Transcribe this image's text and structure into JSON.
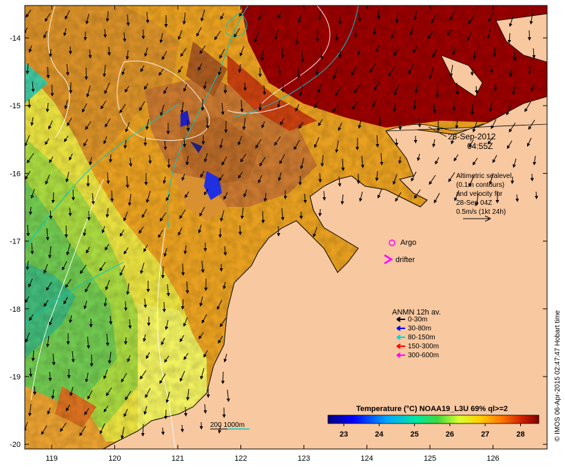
{
  "map": {
    "date_line1": "28-Sep-2012",
    "date_line2": "04:55Z",
    "altimetry": [
      "Altimetric sealevel",
      "(0.1m contours)",
      "and velocity for",
      "28-Sep 04Z",
      "0.5m/s (1kt 24h)"
    ],
    "lon_ticks": [
      "119",
      "120",
      "121",
      "122",
      "123",
      "124",
      "125",
      "126"
    ],
    "lat_ticks": [
      "-14",
      "-15",
      "-16",
      "-17",
      "-18",
      "-19",
      "-20"
    ],
    "legend": {
      "argo": "Argo",
      "drifter": "drifter",
      "anmn_title": "ANMN 12h av.",
      "anmn_items": [
        {
          "label": "0-30m",
          "color": "#000000"
        },
        {
          "label": "30-80m",
          "color": "#0000ff"
        },
        {
          "label": "80-150m",
          "color": "#00d8d8"
        },
        {
          "label": "150-300m",
          "color": "#ff0000"
        },
        {
          "label": "300-600m",
          "color": "#ff00ff"
        }
      ]
    },
    "bathymetry_label": "200  1000m",
    "colorbar": {
      "title": "Temperature (°C) NOAA19_L3U 69% ql>=2",
      "ticks": [
        "23",
        "24",
        "25",
        "26",
        "27",
        "28"
      ]
    },
    "credit": "© IMOS 06-Apr-2015 02:47:47 Hobart time",
    "colors": {
      "land": "#f8c8a0",
      "hot": "#9a0000",
      "argo": "#ff00ff",
      "bathy": "#00c8c8"
    }
  }
}
